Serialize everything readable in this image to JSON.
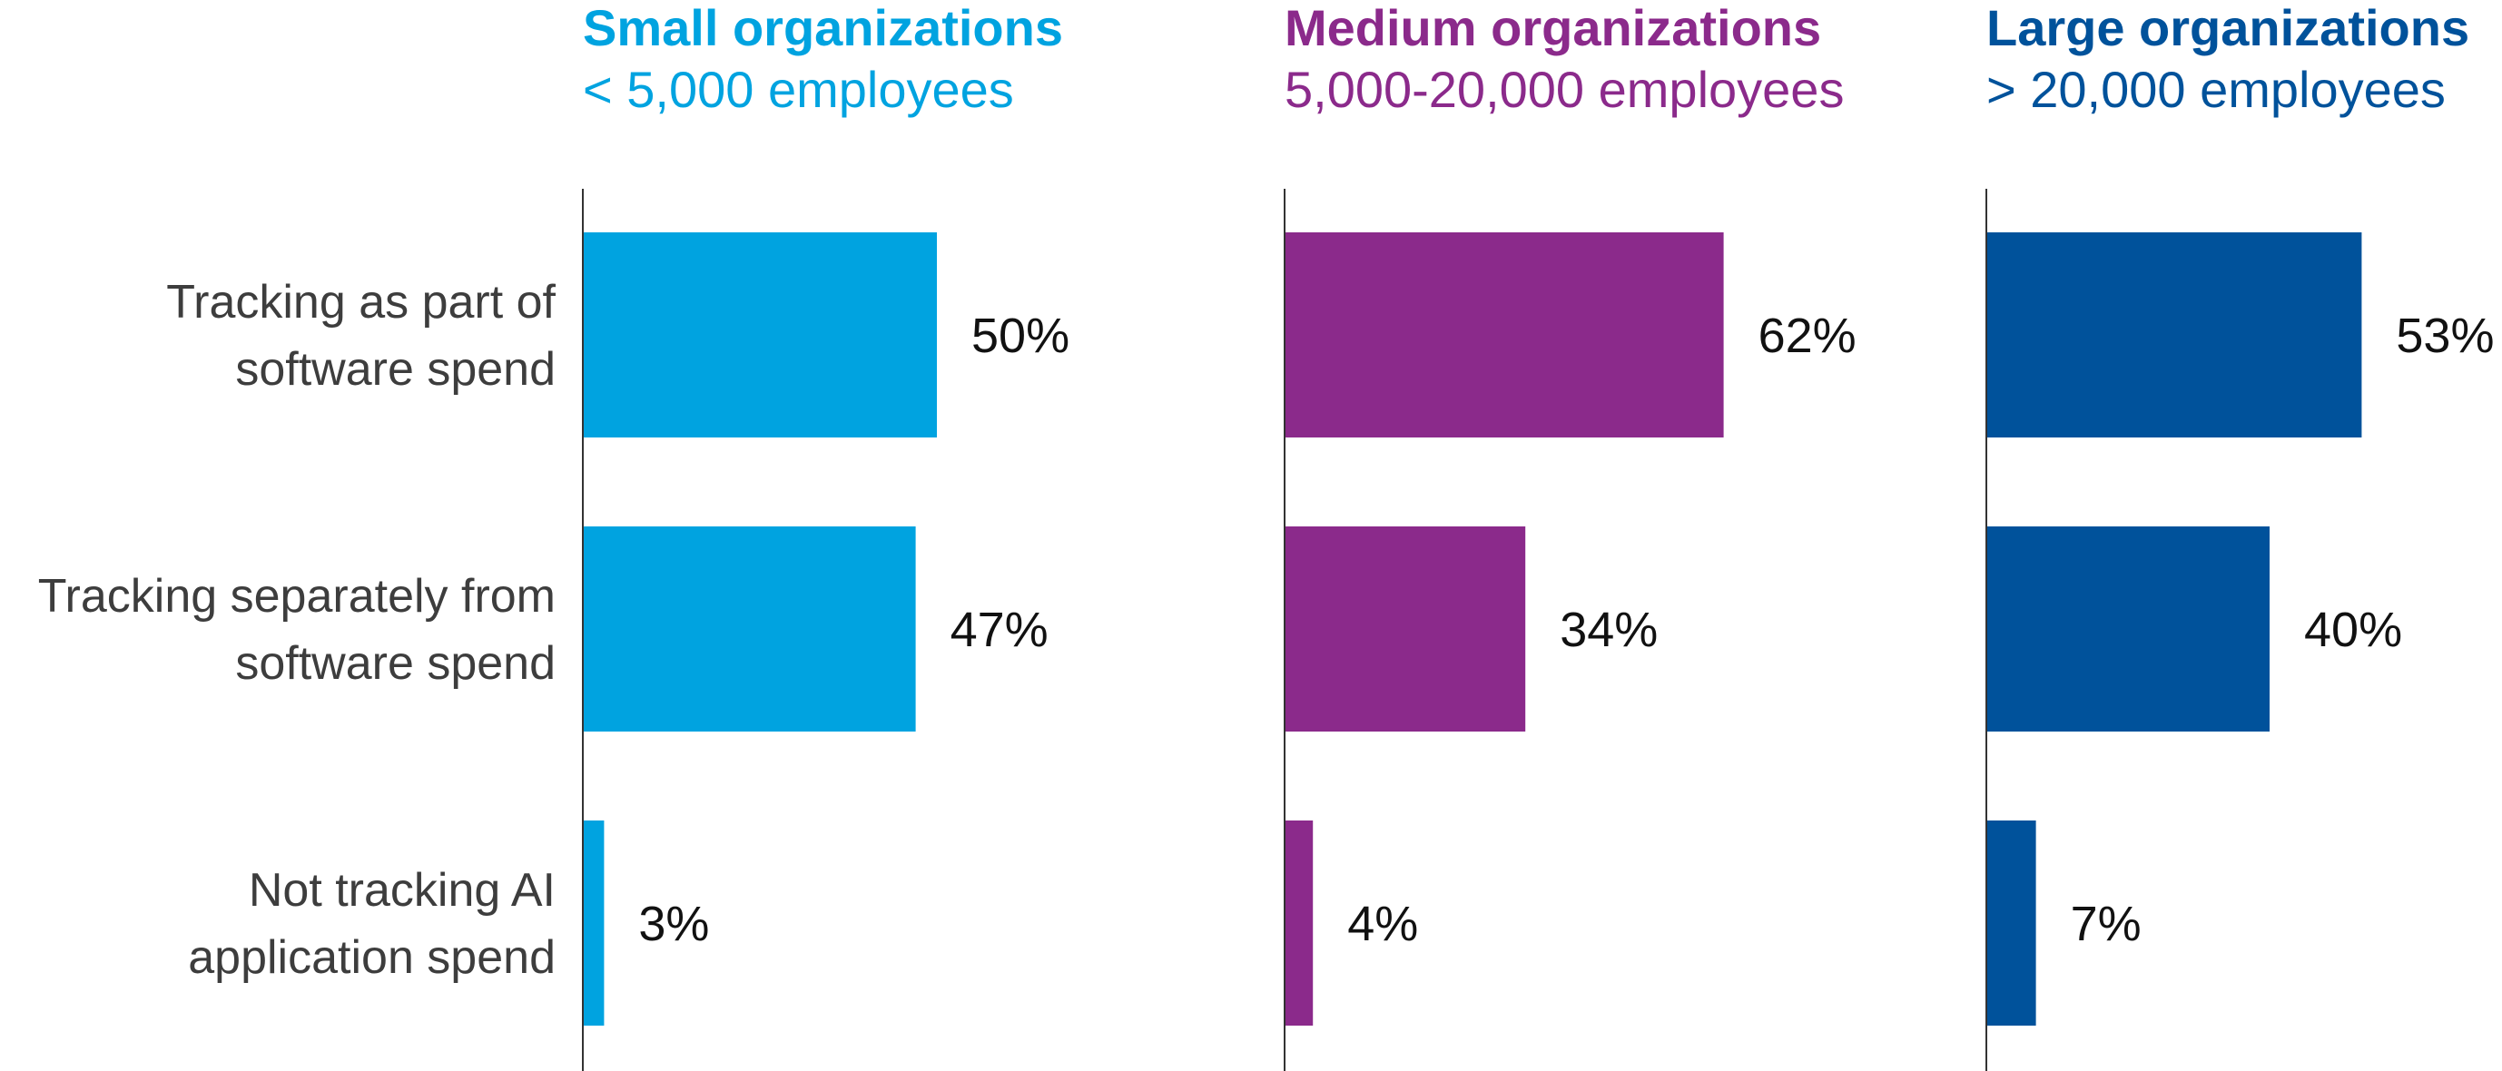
{
  "chart_data": {
    "type": "bar",
    "orientation": "horizontal",
    "categories": [
      [
        "Tracking as part of",
        "software spend"
      ],
      [
        "Tracking separately from",
        "software spend"
      ],
      [
        "Not tracking AI",
        "application spend"
      ]
    ],
    "xlim": [
      0,
      100
    ],
    "grid": false,
    "legend": "none",
    "panels": [
      {
        "title": "Small organizations",
        "subtitle": "< 5,000 employees",
        "color": "#00a3e0",
        "values": [
          50,
          47,
          3
        ],
        "value_labels": [
          "50%",
          "47%",
          "3%"
        ]
      },
      {
        "title": "Medium organizations",
        "subtitle": "5,000-20,000 employees",
        "color": "#8b2a8b",
        "values": [
          62,
          34,
          4
        ],
        "value_labels": [
          "62%",
          "34%",
          "4%"
        ]
      },
      {
        "title": "Large organizations",
        "subtitle": "> 20,000 employees",
        "color": "#00529b",
        "values": [
          53,
          40,
          7
        ],
        "value_labels": [
          "53%",
          "40%",
          "7%"
        ]
      }
    ]
  }
}
